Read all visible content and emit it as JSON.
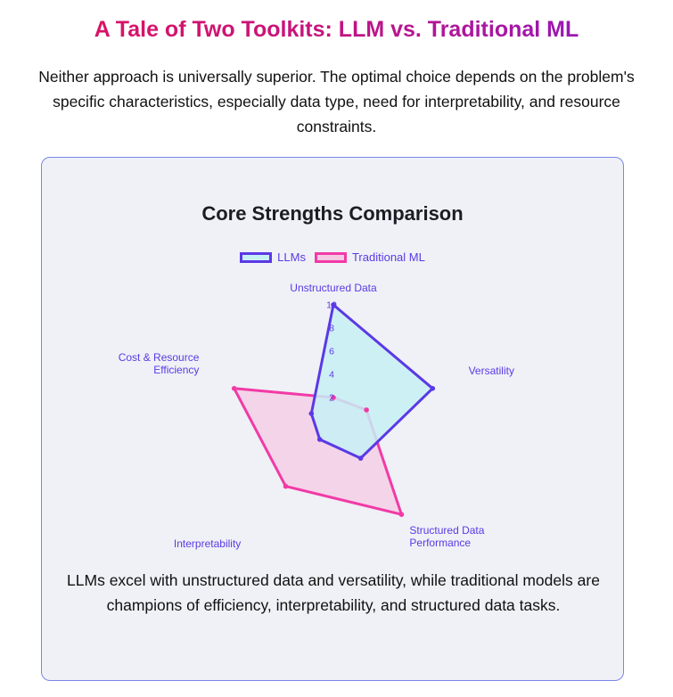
{
  "header": {
    "title": "A Tale of Two Toolkits: LLM vs. Traditional ML",
    "intro": "Neither approach is universally superior. The optimal choice depends on the problem's specific characteristics, especially data type, need for interpretability, and resource constraints."
  },
  "card": {
    "summary": "LLMs excel with unstructured data and versatility, while traditional models are champions of efficiency, interpretability, and structured data tasks."
  },
  "colors": {
    "llm_stroke": "#5b39e6",
    "llm_fill": "#c7f0f5",
    "ml_stroke": "#f23aa6",
    "ml_fill": "#f5c9e4",
    "axis_label": "#5b39e6"
  },
  "chart_data": {
    "type": "radar",
    "title": "Core Strengths Comparison",
    "axes": [
      "Unstructured Data",
      "Versatility",
      "Structured Data Performance",
      "Interpretability",
      "Cost & Resource Efficiency"
    ],
    "axis_label_lines": [
      [
        "Unstructured Data"
      ],
      [
        "Versatility"
      ],
      [
        "Structured Data",
        "Performance"
      ],
      [
        "Interpretability"
      ],
      [
        "Cost & Resource",
        "Efficiency"
      ]
    ],
    "range": [
      0,
      10
    ],
    "ticks": [
      "2",
      "4",
      "6",
      "8",
      "10"
    ],
    "tick_values": [
      2,
      4,
      6,
      8,
      10
    ],
    "grid": false,
    "legend_position": "top",
    "series": [
      {
        "name": "LLMs",
        "values": [
          10,
          9,
          4,
          2,
          2
        ]
      },
      {
        "name": "Traditional ML",
        "values": [
          2,
          3,
          10,
          7,
          9
        ]
      }
    ]
  }
}
